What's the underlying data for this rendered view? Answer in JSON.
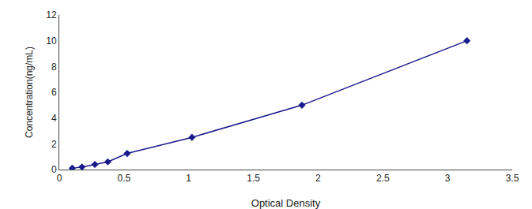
{
  "chart_data": {
    "type": "line",
    "x": [
      0.1,
      0.175,
      0.275,
      0.375,
      0.525,
      1.025,
      1.875,
      3.15
    ],
    "values": [
      0.1,
      0.2,
      0.4,
      0.6,
      1.25,
      2.5,
      5.0,
      10.0
    ],
    "color": "#1a1a8c",
    "marker": "diamond",
    "line_style": "solid",
    "xlabel": "Optical Density",
    "ylabel": "Concentration(ng/mL)",
    "xlim": [
      0,
      3.5
    ],
    "ylim": [
      0,
      12
    ],
    "xticks": [
      0,
      0.5,
      1,
      1.5,
      2,
      2.5,
      3,
      3.5
    ],
    "yticks": [
      0,
      2,
      4,
      6,
      8,
      10,
      12
    ],
    "grid": false
  }
}
